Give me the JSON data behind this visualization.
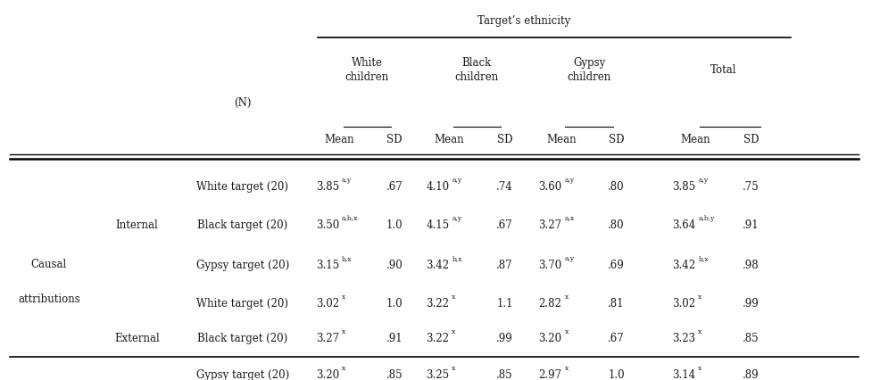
{
  "title": "Target’s ethnicity",
  "bg_color": "#ffffff",
  "text_color": "#1a1a1a",
  "font_size": 8.5,
  "col_x": {
    "group": 0.055,
    "subgroup": 0.155,
    "target": 0.275,
    "wh_mean": 0.385,
    "wh_sd": 0.448,
    "bl_mean": 0.51,
    "bl_sd": 0.573,
    "gy_mean": 0.638,
    "gy_sd": 0.7,
    "to_mean": 0.79,
    "to_sd": 0.853
  },
  "rows": [
    {
      "group": "Causal",
      "group2": "attributions",
      "group_row": 2,
      "subgroup": "Internal",
      "sub_row": 1,
      "target": "White target (20)",
      "wh_mean": "3.85",
      "wh_mean_sup": "a,y",
      "wh_sd": ".67",
      "bl_mean": "4.10",
      "bl_mean_sup": "a,y",
      "bl_sd": ".74",
      "gy_mean": "3.60",
      "gy_mean_sup": "a,y",
      "gy_sd": ".80",
      "to_mean": "3.85",
      "to_mean_sup": "a,y",
      "to_sd": ".75"
    },
    {
      "subgroup": "Internal",
      "sub_row": 1,
      "target": "Black target (20)",
      "wh_mean": "3.50",
      "wh_mean_sup": "a,b,x",
      "wh_sd": "1.0",
      "bl_mean": "4.15",
      "bl_mean_sup": "a,y",
      "bl_sd": ".67",
      "gy_mean": "3.27",
      "gy_mean_sup": "a,x",
      "gy_sd": ".80",
      "to_mean": "3.64",
      "to_mean_sup": "a,b,y",
      "to_sd": ".91"
    },
    {
      "target": "Gypsy target (20)",
      "wh_mean": "3.15",
      "wh_mean_sup": "b,x",
      "wh_sd": ".90",
      "bl_mean": "3.42",
      "bl_mean_sup": "b,x",
      "bl_sd": ".87",
      "gy_mean": "3.70",
      "gy_mean_sup": "a,y",
      "gy_sd": ".69",
      "to_mean": "3.42",
      "to_mean_sup": "b,x",
      "to_sd": ".98"
    },
    {
      "subgroup": "External",
      "sub_row": 4,
      "target": "White target (20)",
      "wh_mean": "3.02",
      "wh_mean_sup": "x",
      "wh_sd": "1.0",
      "bl_mean": "3.22",
      "bl_mean_sup": "x",
      "bl_sd": "1.1",
      "gy_mean": "2.82",
      "gy_mean_sup": "x",
      "gy_sd": ".81",
      "to_mean": "3.02",
      "to_mean_sup": "x",
      "to_sd": ".99"
    },
    {
      "subgroup": "External",
      "sub_row": 4,
      "target": "Black target (20)",
      "wh_mean": "3.27",
      "wh_mean_sup": "x",
      "wh_sd": ".91",
      "bl_mean": "3.22",
      "bl_mean_sup": "x",
      "bl_sd": ".99",
      "gy_mean": "3.20",
      "gy_mean_sup": "x",
      "gy_sd": ".67",
      "to_mean": "3.23",
      "to_mean_sup": "x",
      "to_sd": ".85"
    },
    {
      "target": "Gypsy target (20)",
      "wh_mean": "3.20",
      "wh_mean_sup": "x",
      "wh_sd": ".85",
      "bl_mean": "3.25",
      "bl_mean_sup": "x",
      "bl_sd": ".85",
      "gy_mean": "2.97",
      "gy_mean_sup": "x",
      "gy_sd": "1.0",
      "to_mean": "3.14",
      "to_mean_sup": "x",
      "to_sd": ".89"
    }
  ]
}
